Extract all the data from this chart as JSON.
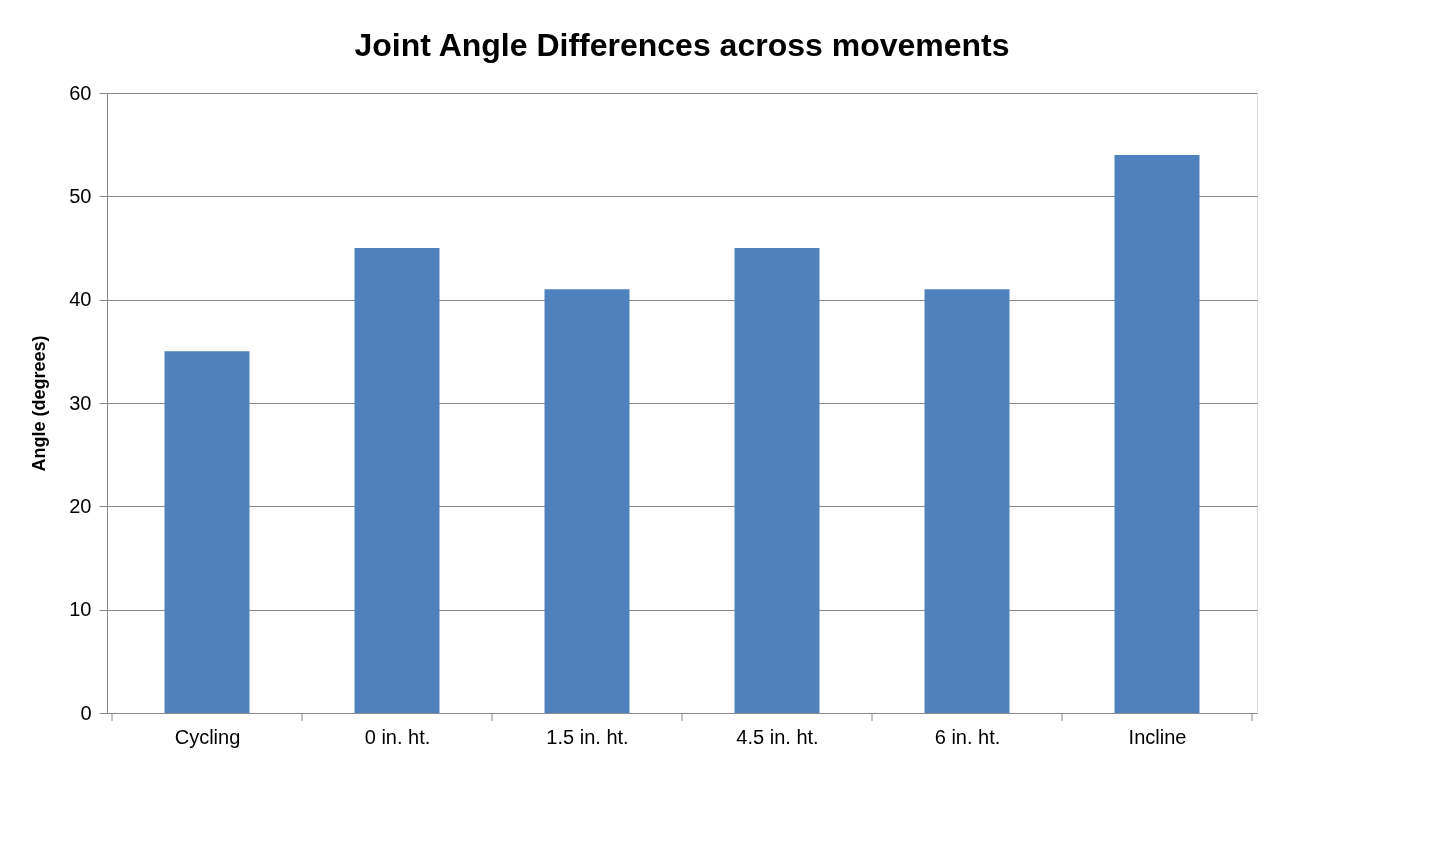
{
  "chart_data": {
    "type": "bar",
    "title": "Joint Angle Differences across movements",
    "ylabel": "Angle (degrees)",
    "categories": [
      "Cycling",
      "0 in. ht.",
      "1.5 in. ht.",
      "4.5 in. ht.",
      "6 in. ht.",
      "Incline"
    ],
    "values": [
      35,
      45,
      41,
      45,
      41,
      54
    ],
    "color": "#4f81bd",
    "ylim": [
      0,
      60
    ],
    "yticks": [
      0,
      10,
      20,
      30,
      40,
      50,
      60
    ],
    "grid": "y"
  }
}
